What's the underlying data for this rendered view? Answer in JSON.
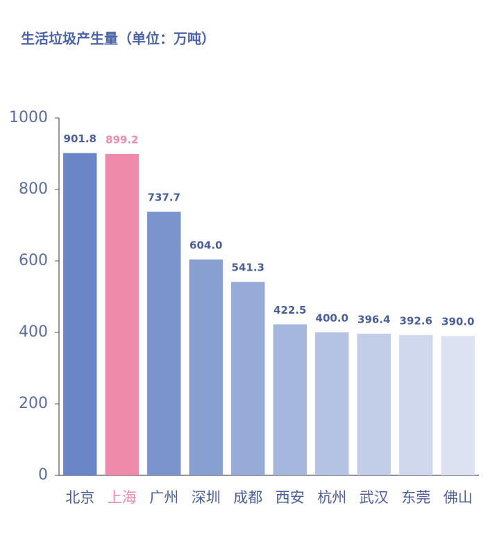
{
  "chart_data": {
    "type": "bar",
    "title": "生活垃圾产生量（单位：万吨）",
    "categories": [
      "北京",
      "上海",
      "广州",
      "深圳",
      "成都",
      "西安",
      "杭州",
      "武汉",
      "东莞",
      "佛山"
    ],
    "values": [
      901.8,
      899.2,
      737.7,
      604,
      541.3,
      422.5,
      400,
      396.4,
      392.6,
      390
    ],
    "value_labels": [
      "901.8",
      "899.2",
      "737.7",
      "604.0",
      "541.3",
      "422.5",
      "400.0",
      "396.4",
      "392.6",
      "390.0"
    ],
    "colors": [
      "#6a86c6",
      "#ef8aab",
      "#7b94cd",
      "#889fd2",
      "#97abd8",
      "#a6b7de",
      "#b4c2e3",
      "#c2cde8",
      "#cfd8ed",
      "#dce2f2"
    ],
    "label_colors": [
      "#4a5f99",
      "#ef8aab",
      "#4a5f99",
      "#4a5f99",
      "#4a5f99",
      "#4a5f99",
      "#4a5f99",
      "#4a5f99",
      "#4a5f99",
      "#4a5f99"
    ],
    "ylim": [
      0,
      1000
    ],
    "yticks": [
      0,
      200,
      400,
      600,
      800,
      1000
    ],
    "grid": false
  }
}
